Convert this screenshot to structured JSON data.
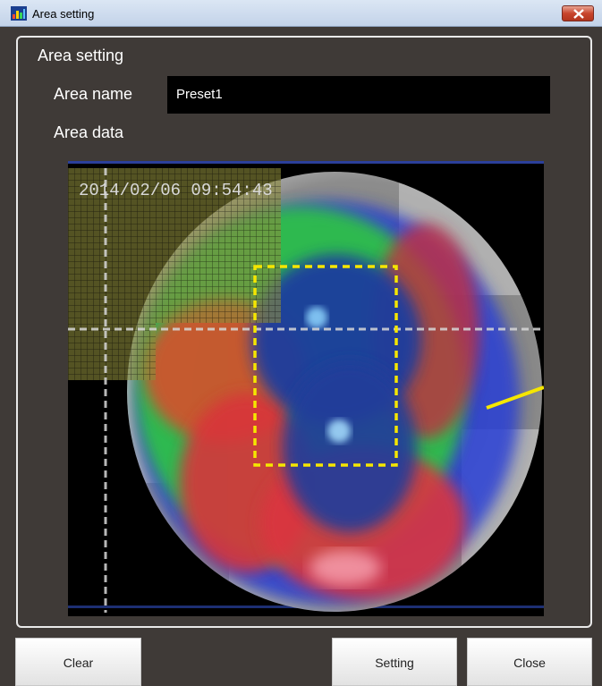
{
  "window": {
    "title": "Area setting",
    "app_icon": "heatmap-app-icon",
    "close_icon": "close-icon"
  },
  "panel": {
    "title": "Area setting",
    "area_name_label": "Area name",
    "area_name_value": "Preset1",
    "area_data_label": "Area data"
  },
  "camera": {
    "timestamp": "2014/02/06  09:54:43",
    "selection_color": "#f5e600"
  },
  "buttons": {
    "clear": "Clear",
    "setting": "Setting",
    "close": "Close"
  }
}
